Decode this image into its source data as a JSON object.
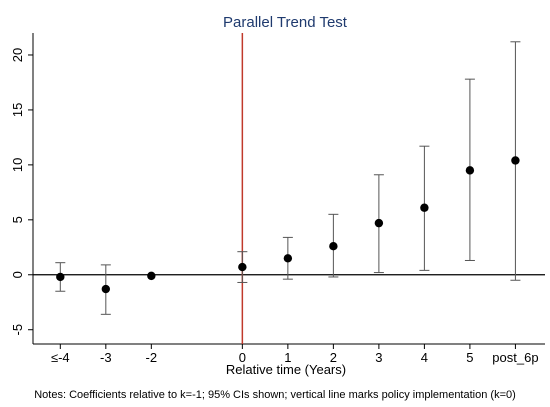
{
  "chart_data": {
    "type": "scatter",
    "title": "Parallel Trend Test",
    "xlabel": "Relative time (Years)",
    "ylabel": "",
    "note": "Notes: Coefficients relative to k=-1; 95% CIs shown; vertical line marks policy implementation (k=0)",
    "categories": [
      "≤-4",
      "-3",
      "-2",
      "0",
      "1",
      "2",
      "3",
      "4",
      "5",
      "post_6p"
    ],
    "positions": [
      -4,
      -3,
      -2,
      0,
      1,
      2,
      3,
      4,
      5,
      6
    ],
    "estimates": [
      -0.2,
      -1.3,
      -0.1,
      0.7,
      1.5,
      2.6,
      4.7,
      6.1,
      9.5,
      10.4
    ],
    "ci_lower": [
      -1.5,
      -3.6,
      -0.1,
      -0.7,
      -0.4,
      -0.2,
      0.2,
      0.4,
      1.3,
      -0.5
    ],
    "ci_upper": [
      1.1,
      0.9,
      -0.1,
      2.1,
      3.4,
      5.5,
      9.1,
      11.7,
      17.8,
      21.2
    ],
    "y_ticks": [
      -5,
      0,
      5,
      10,
      15,
      20
    ],
    "ylim": [
      -6.3,
      22.0
    ],
    "xlim": [
      -4.6,
      6.65
    ],
    "reference_line_y": 0,
    "vertical_line_x": 0,
    "grid": false,
    "colors": {
      "title": "#1f3a6e",
      "vline": "#c0392b",
      "points": "#000000",
      "ci": "#555555"
    }
  }
}
